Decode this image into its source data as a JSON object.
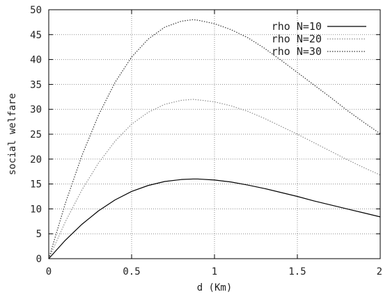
{
  "chart_data": {
    "type": "line",
    "title": "",
    "xlabel": "d (Km)",
    "ylabel": "social welfare",
    "xlim": [
      0,
      2
    ],
    "ylim": [
      0,
      50
    ],
    "xticks": [
      0,
      0.5,
      1,
      1.5,
      2
    ],
    "xtick_labels": [
      "0",
      "0.5",
      "1",
      "1.5",
      "2"
    ],
    "yticks": [
      0,
      5,
      10,
      15,
      20,
      25,
      30,
      35,
      40,
      45,
      50
    ],
    "ytick_labels": [
      "0",
      "5",
      "10",
      "15",
      "20",
      "25",
      "30",
      "35",
      "40",
      "45",
      "50"
    ],
    "grid": true,
    "legend_position": "top-right",
    "x": [
      0,
      0.1,
      0.2,
      0.3,
      0.4,
      0.5,
      0.6,
      0.7,
      0.8,
      0.87,
      0.9,
      1.0,
      1.1,
      1.2,
      1.3,
      1.4,
      1.5,
      1.6,
      1.7,
      1.8,
      1.9,
      2.0
    ],
    "series": [
      {
        "name": "rho N=10",
        "color": "#000000",
        "line_style": "solid",
        "values": [
          0.0,
          3.7,
          6.9,
          9.6,
          11.8,
          13.5,
          14.7,
          15.5,
          15.9,
          16.0,
          16.0,
          15.8,
          15.4,
          14.8,
          14.1,
          13.3,
          12.5,
          11.6,
          10.8,
          10.0,
          9.2,
          8.4
        ]
      },
      {
        "name": "rho N=20",
        "color": "#8c8c8c",
        "line_style": "dotted",
        "values": [
          0.0,
          7.4,
          13.8,
          19.2,
          23.6,
          27.0,
          29.4,
          31.0,
          31.8,
          32.0,
          31.9,
          31.5,
          30.7,
          29.6,
          28.2,
          26.6,
          25.0,
          23.3,
          21.6,
          19.9,
          18.3,
          16.8
        ]
      },
      {
        "name": "rho N=30",
        "color": "#333333",
        "line_style": "dotted",
        "values": [
          0.0,
          11.1,
          20.7,
          28.8,
          35.4,
          40.5,
          44.1,
          46.5,
          47.7,
          48.0,
          47.9,
          47.2,
          46.0,
          44.4,
          42.3,
          39.9,
          37.4,
          34.9,
          32.4,
          29.8,
          27.4,
          25.1
        ]
      }
    ]
  }
}
